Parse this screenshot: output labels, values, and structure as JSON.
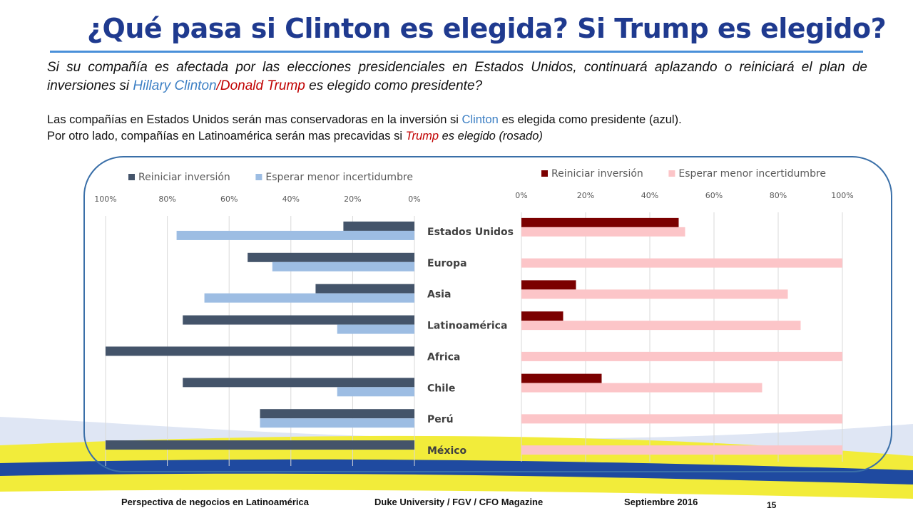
{
  "header": {
    "title": "¿Qué pasa si Clinton es elegida? Si Trump es elegido?"
  },
  "question": {
    "part1": "Si su compañía es afectada por las elecciones presidenciales en Estados Unidos, continuará aplazando o reiniciará el plan de inversiones si ",
    "clinton": "Hillary Clinton",
    "slash": "/",
    "trump": "Donald Trump",
    "part2": " es elegido como presidente?"
  },
  "note": {
    "line1a": "Las compañías en Estados Unidos serán mas conservadoras en la inversión si ",
    "line1_clinton": "Clinton",
    "line1b": " es elegida como presidente (azul).",
    "line2a": "Por otro lado, compañías en Latinoamérica serán mas precavidas si ",
    "line2_trump": "Trump",
    "line2b": " es elegido (rosado)"
  },
  "footer": {
    "left": "Perspectiva de negocios en Latinoamérica",
    "middle": "Duke University / FGV / CFO Magazine",
    "right": "Septiembre 2016",
    "page": "15"
  },
  "colors": {
    "title": "#1f3a8f",
    "clinton_reiniciar": "#44546a",
    "clinton_esperar": "#9dbde3",
    "trump_reiniciar": "#7b0000",
    "trump_esperar": "#fcc5c8"
  },
  "chart_data": [
    {
      "type": "bar",
      "orientation": "horizontal",
      "x_axis": "reversed",
      "categories": [
        "Estados Unidos",
        "Europa",
        "Asia",
        "Latinoamérica",
        "Africa",
        "Chile",
        "Perú",
        "México"
      ],
      "series": [
        {
          "name": "Reiniciar inversión",
          "values": [
            23,
            54,
            32,
            75,
            100,
            75,
            50,
            100
          ]
        },
        {
          "name": "Esperar menor incertidumbre",
          "values": [
            77,
            46,
            68,
            25,
            0,
            25,
            50,
            0
          ]
        }
      ],
      "ticks": [
        "100%",
        "80%",
        "60%",
        "40%",
        "20%",
        "0%"
      ],
      "xlim": [
        0,
        100
      ],
      "legend": "top",
      "grid": true
    },
    {
      "type": "bar",
      "orientation": "horizontal",
      "categories": [
        "Estados Unidos",
        "Europa",
        "Asia",
        "Latinoamérica",
        "Africa",
        "Chile",
        "Perú",
        "México"
      ],
      "series": [
        {
          "name": "Reiniciar inversión",
          "values": [
            49,
            0,
            17,
            13,
            0,
            25,
            0,
            0
          ]
        },
        {
          "name": "Esperar menor incertidumbre",
          "values": [
            51,
            100,
            83,
            87,
            100,
            75,
            100,
            100
          ]
        }
      ],
      "ticks": [
        "0%",
        "20%",
        "40%",
        "60%",
        "80%",
        "100%"
      ],
      "xlim": [
        0,
        100
      ],
      "legend": "top",
      "grid": true
    }
  ]
}
